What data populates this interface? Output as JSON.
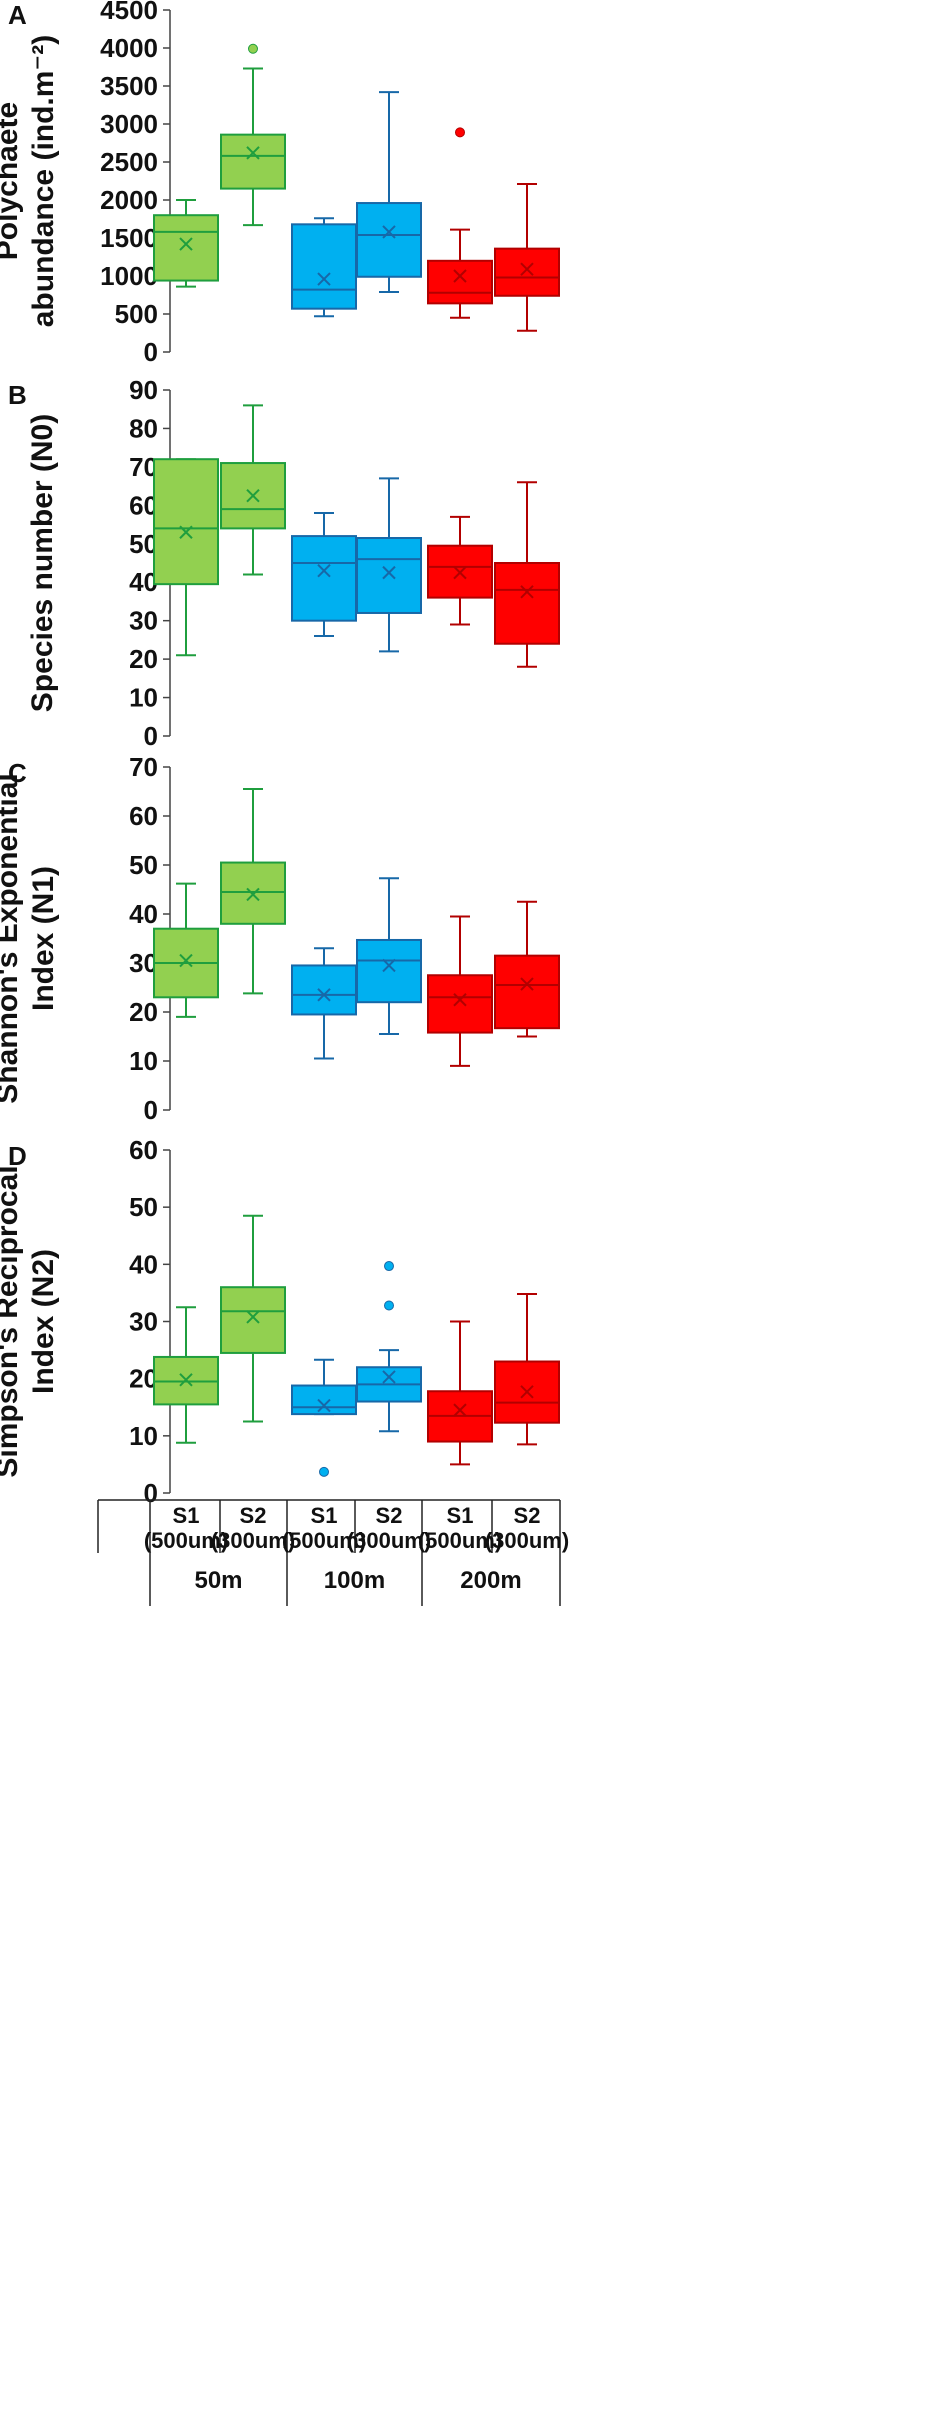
{
  "chart_data": [
    {
      "type": "box",
      "panel": "A",
      "ylabel_lines": [
        "Polychaete",
        "abundance (ind.m⁻²)"
      ],
      "ylim": [
        0,
        4500
      ],
      "yticks": [
        0,
        500,
        1000,
        1500,
        2000,
        2500,
        3000,
        3500,
        4000,
        4500
      ],
      "boxes": [
        {
          "name": "50m S1 (500um)",
          "color": "green",
          "min": 860,
          "q1": 940,
          "median": 1580,
          "q3": 1800,
          "max": 2000,
          "mean": 1420,
          "outliers": []
        },
        {
          "name": "50m S2 (300um)",
          "color": "green",
          "min": 1670,
          "q1": 2150,
          "median": 2580,
          "q3": 2860,
          "max": 3730,
          "mean": 2620,
          "outliers": [
            3990
          ]
        },
        {
          "name": "100m S1 (500um)",
          "color": "blue",
          "min": 470,
          "q1": 570,
          "median": 820,
          "q3": 1680,
          "max": 1760,
          "mean": 960,
          "outliers": []
        },
        {
          "name": "100m S2 (300um)",
          "color": "blue",
          "min": 790,
          "q1": 990,
          "median": 1540,
          "q3": 1960,
          "max": 3420,
          "mean": 1580,
          "outliers": []
        },
        {
          "name": "200m S1 (500um)",
          "color": "red",
          "min": 450,
          "q1": 640,
          "median": 780,
          "q3": 1200,
          "max": 1610,
          "mean": 1000,
          "outliers": [
            2890
          ]
        },
        {
          "name": "200m S2 (300um)",
          "color": "red",
          "min": 280,
          "q1": 740,
          "median": 980,
          "q3": 1360,
          "max": 2210,
          "mean": 1090,
          "outliers": []
        }
      ]
    },
    {
      "type": "box",
      "panel": "B",
      "ylabel_lines": [
        "Species number (N0)"
      ],
      "ylim": [
        0,
        90
      ],
      "yticks": [
        0,
        10,
        20,
        30,
        40,
        50,
        60,
        70,
        80,
        90
      ],
      "boxes": [
        {
          "name": "50m S1 (500um)",
          "color": "green",
          "min": 21,
          "q1": 39.5,
          "median": 54,
          "q3": 72,
          "max": 72,
          "mean": 53,
          "outliers": []
        },
        {
          "name": "50m S2 (300um)",
          "color": "green",
          "min": 42,
          "q1": 54,
          "median": 59,
          "q3": 71,
          "max": 86,
          "mean": 62.5,
          "outliers": []
        },
        {
          "name": "100m S1 (500um)",
          "color": "blue",
          "min": 26,
          "q1": 30,
          "median": 45,
          "q3": 52,
          "max": 58,
          "mean": 43,
          "outliers": []
        },
        {
          "name": "100m S2 (300um)",
          "color": "blue",
          "min": 22,
          "q1": 32,
          "median": 46,
          "q3": 51.5,
          "max": 67,
          "mean": 42.5,
          "outliers": []
        },
        {
          "name": "200m S1 (500um)",
          "color": "red",
          "min": 29,
          "q1": 36,
          "median": 44,
          "q3": 49.5,
          "max": 57,
          "mean": 42.5,
          "outliers": []
        },
        {
          "name": "200m S2 (300um)",
          "color": "red",
          "min": 18,
          "q1": 24,
          "median": 38,
          "q3": 45,
          "max": 66,
          "mean": 37.5,
          "outliers": []
        }
      ]
    },
    {
      "type": "box",
      "panel": "C",
      "ylabel_lines": [
        "Shannon's Exponential",
        "Index (N1)"
      ],
      "ylim": [
        0,
        70
      ],
      "yticks": [
        0,
        10,
        20,
        30,
        40,
        50,
        60,
        70
      ],
      "boxes": [
        {
          "name": "50m S1 (500um)",
          "color": "green",
          "min": 19,
          "q1": 23,
          "median": 30,
          "q3": 37,
          "max": 46.2,
          "mean": 30.5,
          "outliers": []
        },
        {
          "name": "50m S2 (300um)",
          "color": "green",
          "min": 23.8,
          "q1": 38,
          "median": 44.5,
          "q3": 50.5,
          "max": 65.5,
          "mean": 44,
          "outliers": []
        },
        {
          "name": "100m S1 (500um)",
          "color": "blue",
          "min": 10.5,
          "q1": 19.5,
          "median": 23.5,
          "q3": 29.5,
          "max": 33,
          "mean": 23.5,
          "outliers": []
        },
        {
          "name": "100m S2 (300um)",
          "color": "blue",
          "min": 15.5,
          "q1": 22,
          "median": 30.5,
          "q3": 34.7,
          "max": 47.3,
          "mean": 29.5,
          "outliers": []
        },
        {
          "name": "200m S1 (500um)",
          "color": "red",
          "min": 9,
          "q1": 15.8,
          "median": 23,
          "q3": 27.5,
          "max": 39.5,
          "mean": 22.5,
          "outliers": []
        },
        {
          "name": "200m S2 (300um)",
          "color": "red",
          "min": 15,
          "q1": 16.7,
          "median": 25.5,
          "q3": 31.5,
          "max": 42.5,
          "mean": 25.7,
          "outliers": []
        }
      ]
    },
    {
      "type": "box",
      "panel": "D",
      "ylabel_lines": [
        "Simpson's Reciprocal",
        "Index (N2)"
      ],
      "ylim": [
        0,
        60
      ],
      "yticks": [
        0,
        10,
        20,
        30,
        40,
        50,
        60
      ],
      "boxes": [
        {
          "name": "50m S1 (500um)",
          "color": "green",
          "min": 8.8,
          "q1": 15.5,
          "median": 19.5,
          "q3": 23.8,
          "max": 32.5,
          "mean": 19.8,
          "outliers": []
        },
        {
          "name": "50m S2 (300um)",
          "color": "green",
          "min": 12.5,
          "q1": 24.5,
          "median": 31.8,
          "q3": 36,
          "max": 48.5,
          "mean": 30.8,
          "outliers": []
        },
        {
          "name": "100m S1 (500um)",
          "color": "blue",
          "min": 13.8,
          "q1": 13.8,
          "median": 15,
          "q3": 18.8,
          "max": 23.3,
          "mean": 15.3,
          "outliers": [
            3.7
          ]
        },
        {
          "name": "100m S2 (300um)",
          "color": "blue",
          "min": 10.8,
          "q1": 16,
          "median": 19,
          "q3": 22,
          "max": 25,
          "mean": 20.3,
          "outliers": [
            32.8,
            39.7
          ]
        },
        {
          "name": "200m S1 (500um)",
          "color": "red",
          "min": 5,
          "q1": 9,
          "median": 13.5,
          "q3": 17.8,
          "max": 30,
          "mean": 14.5,
          "outliers": []
        },
        {
          "name": "200m S2 (300um)",
          "color": "red",
          "min": 8.5,
          "q1": 12.3,
          "median": 15.8,
          "q3": 23,
          "max": 34.8,
          "mean": 17.7,
          "outliers": []
        }
      ]
    }
  ],
  "x_axis": {
    "categories": [
      {
        "line1": "S1",
        "line2": "(500um)"
      },
      {
        "line1": "S2",
        "line2": "(300um)"
      },
      {
        "line1": "S1",
        "line2": "(500um)"
      },
      {
        "line1": "S2",
        "line2": "(300um)"
      },
      {
        "line1": "S1",
        "line2": "(500um)"
      },
      {
        "line1": "S2",
        "line2": "(300um)"
      }
    ],
    "groups": [
      "50m",
      "100m",
      "200m"
    ]
  },
  "colors": {
    "green": {
      "fill": "#92d050",
      "stroke": "#1f9e3e"
    },
    "blue": {
      "fill": "#00b0f0",
      "stroke": "#1768a8"
    },
    "red": {
      "fill": "#ff0000",
      "stroke": "#b20000"
    },
    "axis": "#444444"
  }
}
